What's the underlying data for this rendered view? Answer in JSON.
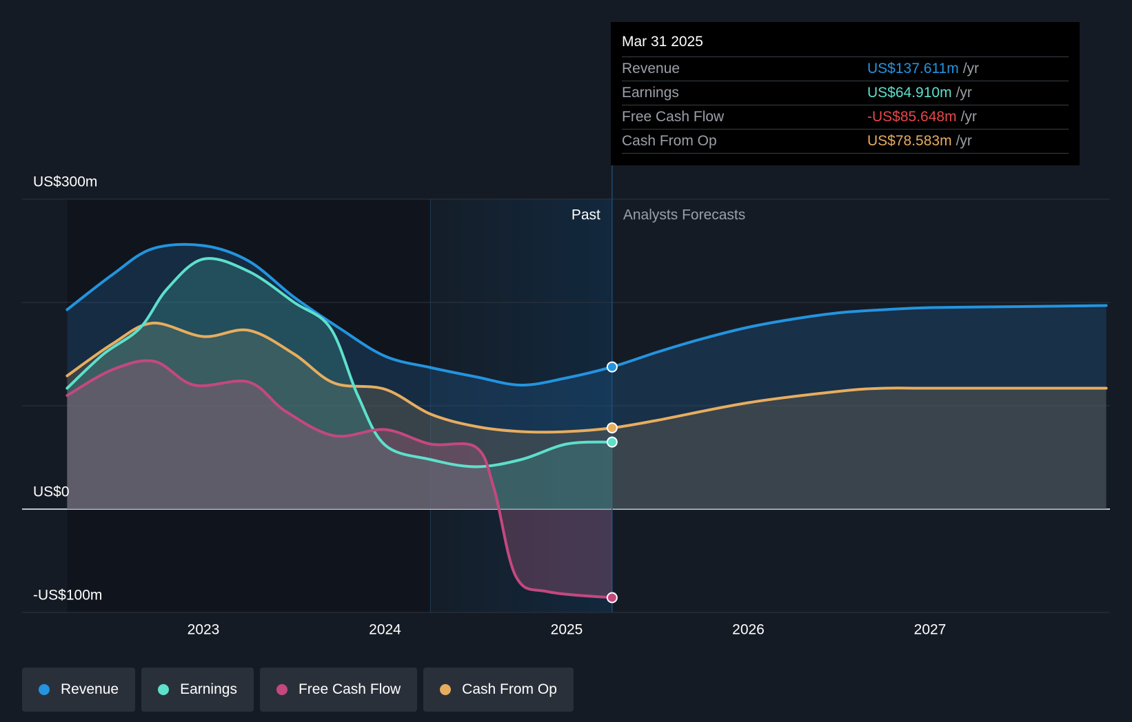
{
  "chart_data": {
    "type": "area",
    "title": "",
    "xlabel": "",
    "ylabel": "",
    "ylim": [
      -100,
      300
    ],
    "y_ticks": [
      {
        "value": 300,
        "label": "US$300m"
      },
      {
        "value": 0,
        "label": "US$0"
      },
      {
        "value": -100,
        "label": "-US$100m"
      }
    ],
    "x_ticks": [
      "2023",
      "2024",
      "2025",
      "2026",
      "2027"
    ],
    "grid": true,
    "sections": {
      "past_label": "Past",
      "forecast_label": "Analysts Forecasts"
    },
    "series": [
      {
        "name": "Revenue",
        "color": "#2394df",
        "key": "revenue",
        "points": [
          [
            2022.25,
            193
          ],
          [
            2022.5,
            227
          ],
          [
            2022.72,
            252
          ],
          [
            2023.0,
            255
          ],
          [
            2023.25,
            240
          ],
          [
            2023.5,
            205
          ],
          [
            2023.75,
            175
          ],
          [
            2024.0,
            148
          ],
          [
            2024.25,
            137
          ],
          [
            2024.5,
            128
          ],
          [
            2024.75,
            120
          ],
          [
            2025.0,
            127
          ],
          [
            2025.25,
            137.611
          ],
          [
            2025.5,
            152
          ],
          [
            2025.75,
            165
          ],
          [
            2026.0,
            176
          ],
          [
            2026.25,
            184
          ],
          [
            2026.5,
            190
          ],
          [
            2026.75,
            193
          ],
          [
            2027.0,
            195
          ],
          [
            2027.5,
            196
          ],
          [
            2027.97,
            197
          ]
        ]
      },
      {
        "name": "Earnings",
        "color": "#5de0cc",
        "key": "earnings",
        "points": [
          [
            2022.25,
            117
          ],
          [
            2022.45,
            150
          ],
          [
            2022.65,
            175
          ],
          [
            2022.8,
            213
          ],
          [
            2023.0,
            242
          ],
          [
            2023.25,
            230
          ],
          [
            2023.5,
            200
          ],
          [
            2023.7,
            175
          ],
          [
            2023.85,
            110
          ],
          [
            2024.0,
            62
          ],
          [
            2024.25,
            48
          ],
          [
            2024.5,
            41
          ],
          [
            2024.75,
            48
          ],
          [
            2025.0,
            63
          ],
          [
            2025.25,
            64.91
          ]
        ]
      },
      {
        "name": "Free Cash Flow",
        "color": "#c4487f",
        "key": "fcf",
        "points": [
          [
            2022.25,
            110
          ],
          [
            2022.5,
            135
          ],
          [
            2022.73,
            143
          ],
          [
            2022.95,
            120
          ],
          [
            2023.25,
            123
          ],
          [
            2023.45,
            95
          ],
          [
            2023.72,
            71
          ],
          [
            2024.0,
            77
          ],
          [
            2024.25,
            63
          ],
          [
            2024.5,
            60
          ],
          [
            2024.6,
            20
          ],
          [
            2024.72,
            -65
          ],
          [
            2024.9,
            -80
          ],
          [
            2025.25,
            -85.648
          ]
        ]
      },
      {
        "name": "Cash From Op",
        "color": "#e7ad5f",
        "key": "cfo",
        "points": [
          [
            2022.25,
            129
          ],
          [
            2022.5,
            160
          ],
          [
            2022.72,
            180
          ],
          [
            2023.0,
            167
          ],
          [
            2023.25,
            173
          ],
          [
            2023.5,
            150
          ],
          [
            2023.72,
            122
          ],
          [
            2024.0,
            116
          ],
          [
            2024.25,
            92
          ],
          [
            2024.5,
            80
          ],
          [
            2024.75,
            75
          ],
          [
            2025.0,
            75
          ],
          [
            2025.25,
            78.583
          ],
          [
            2025.5,
            86
          ],
          [
            2026.0,
            103
          ],
          [
            2026.5,
            114
          ],
          [
            2026.75,
            117
          ],
          [
            2027.0,
            117
          ],
          [
            2027.97,
            117
          ]
        ]
      }
    ]
  },
  "tooltip": {
    "date": "Mar 31 2025",
    "rows": [
      {
        "label": "Revenue",
        "value": "US$137.611m",
        "unit": "/yr",
        "color": "#2394df"
      },
      {
        "label": "Earnings",
        "value": "US$64.910m",
        "unit": "/yr",
        "color": "#5de0cc"
      },
      {
        "label": "Free Cash Flow",
        "value": "-US$85.648m",
        "unit": "/yr",
        "color": "#e5484d"
      },
      {
        "label": "Cash From Op",
        "value": "US$78.583m",
        "unit": "/yr",
        "color": "#e7ad5f"
      }
    ]
  },
  "legend": [
    {
      "label": "Revenue",
      "color": "#2394df"
    },
    {
      "label": "Earnings",
      "color": "#5de0cc"
    },
    {
      "label": "Free Cash Flow",
      "color": "#c4487f"
    },
    {
      "label": "Cash From Op",
      "color": "#e7ad5f"
    }
  ]
}
